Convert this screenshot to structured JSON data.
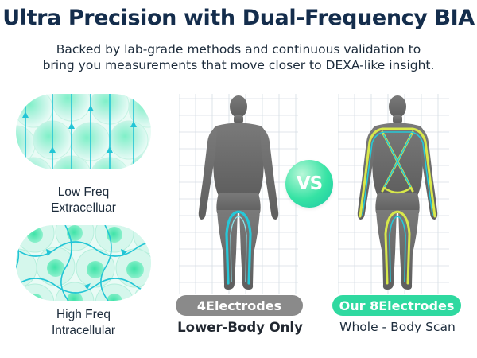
{
  "header": {
    "title": "Ultra Precision with Dual-Frequency BIA",
    "subtitle_line1": "Backed by lab-grade methods and continuous validation to",
    "subtitle_line2": "bring you measurements that move closer to DEXA-like insight."
  },
  "frequencies": [
    {
      "line1": "Low Freq",
      "line2": "Extracelluar",
      "icon": "extracellular-current-cells"
    },
    {
      "line1": "High Freq",
      "line2": "Intracellular",
      "icon": "intracellular-current-cells"
    }
  ],
  "comparison": {
    "vs_label": "VS",
    "left": {
      "pill": "4Electrodes",
      "caption": "Lower-Body Only",
      "color": "#8a8a8a"
    },
    "right": {
      "pill": "Our 8Electrodes",
      "caption": "Whole - Body Scan",
      "color": "#2fd9a0"
    }
  },
  "colors": {
    "title": "#142d4c",
    "accent_teal": "#22c5d6",
    "accent_green": "#2fd9a0",
    "path_yellow": "#d8e84a",
    "silhouette": "#6f6f6f"
  }
}
